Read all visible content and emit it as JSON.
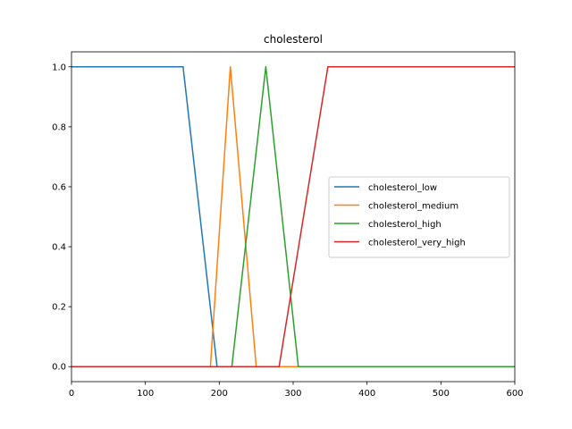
{
  "chart_data": {
    "type": "line",
    "title": "cholesterol",
    "xlabel": "",
    "ylabel": "",
    "xlim": [
      0,
      600
    ],
    "ylim": [
      -0.05,
      1.05
    ],
    "xticks": [
      0,
      100,
      200,
      300,
      400,
      500,
      600
    ],
    "yticks": [
      0.0,
      0.2,
      0.4,
      0.6,
      0.8,
      1.0
    ],
    "ytick_labels": [
      "0.0",
      "0.2",
      "0.4",
      "0.6",
      "0.8",
      "1.0"
    ],
    "grid": false,
    "legend_position": "center-right",
    "series": [
      {
        "name": "cholesterol_low",
        "color": "#1f77b4",
        "x": [
          0,
          151,
          197,
          600
        ],
        "y": [
          1,
          1,
          0,
          0
        ]
      },
      {
        "name": "cholesterol_medium",
        "color": "#ff7f0e",
        "x": [
          0,
          188,
          215,
          250,
          600
        ],
        "y": [
          0,
          0,
          1,
          0,
          0
        ]
      },
      {
        "name": "cholesterol_high",
        "color": "#2ca02c",
        "x": [
          0,
          217,
          263,
          307,
          600
        ],
        "y": [
          0,
          0,
          1,
          0,
          0
        ]
      },
      {
        "name": "cholesterol_very_high",
        "color": "#d62728",
        "x": [
          0,
          281,
          347,
          600
        ],
        "y": [
          0,
          0,
          1,
          1
        ]
      }
    ]
  }
}
